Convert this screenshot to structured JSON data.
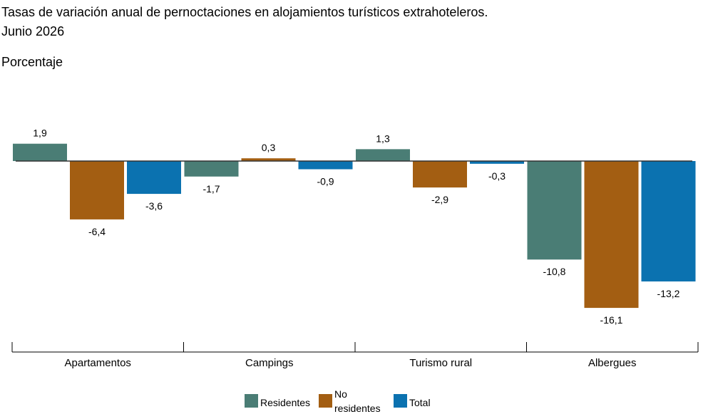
{
  "title_line1": "Tasas de variación anual de pernoctaciones en alojamientos turísticos extrahoteleros.",
  "title_line2": "Junio 2026",
  "subtitle": "Porcentaje",
  "colors": {
    "Residentes": "#4a7d75",
    "No residentes": "#a35e12",
    "Total": "#0b72b0"
  },
  "chart_data": {
    "type": "bar",
    "categories": [
      "Apartamentos",
      "Campings",
      "Turismo rural",
      "Albergues"
    ],
    "series": [
      {
        "name": "Residentes",
        "values": [
          1.9,
          -1.7,
          1.3,
          -10.8
        ],
        "labels": [
          "1,9",
          "-1,7",
          "1,3",
          "-10,8"
        ]
      },
      {
        "name": "No residentes",
        "values": [
          -6.4,
          0.3,
          -2.9,
          -16.1
        ],
        "labels": [
          "-6,4",
          "0,3",
          "-2,9",
          "-16,1"
        ]
      },
      {
        "name": "Total",
        "values": [
          -3.6,
          -0.9,
          -0.3,
          -13.2
        ],
        "labels": [
          "-3,6",
          "-0,9",
          "-0,3",
          "-13,2"
        ]
      }
    ],
    "title": "Tasas de variación anual de pernoctaciones en alojamientos turísticos extrahoteleros. Junio 2026",
    "ylabel": "Porcentaje",
    "ylim": [
      -17,
      3
    ],
    "grid": false,
    "legend_position": "bottom"
  },
  "legend": [
    {
      "label": "Residentes",
      "color": "#4a7d75"
    },
    {
      "label": "No residentes",
      "color": "#a35e12"
    },
    {
      "label": "Total",
      "color": "#0b72b0"
    }
  ]
}
